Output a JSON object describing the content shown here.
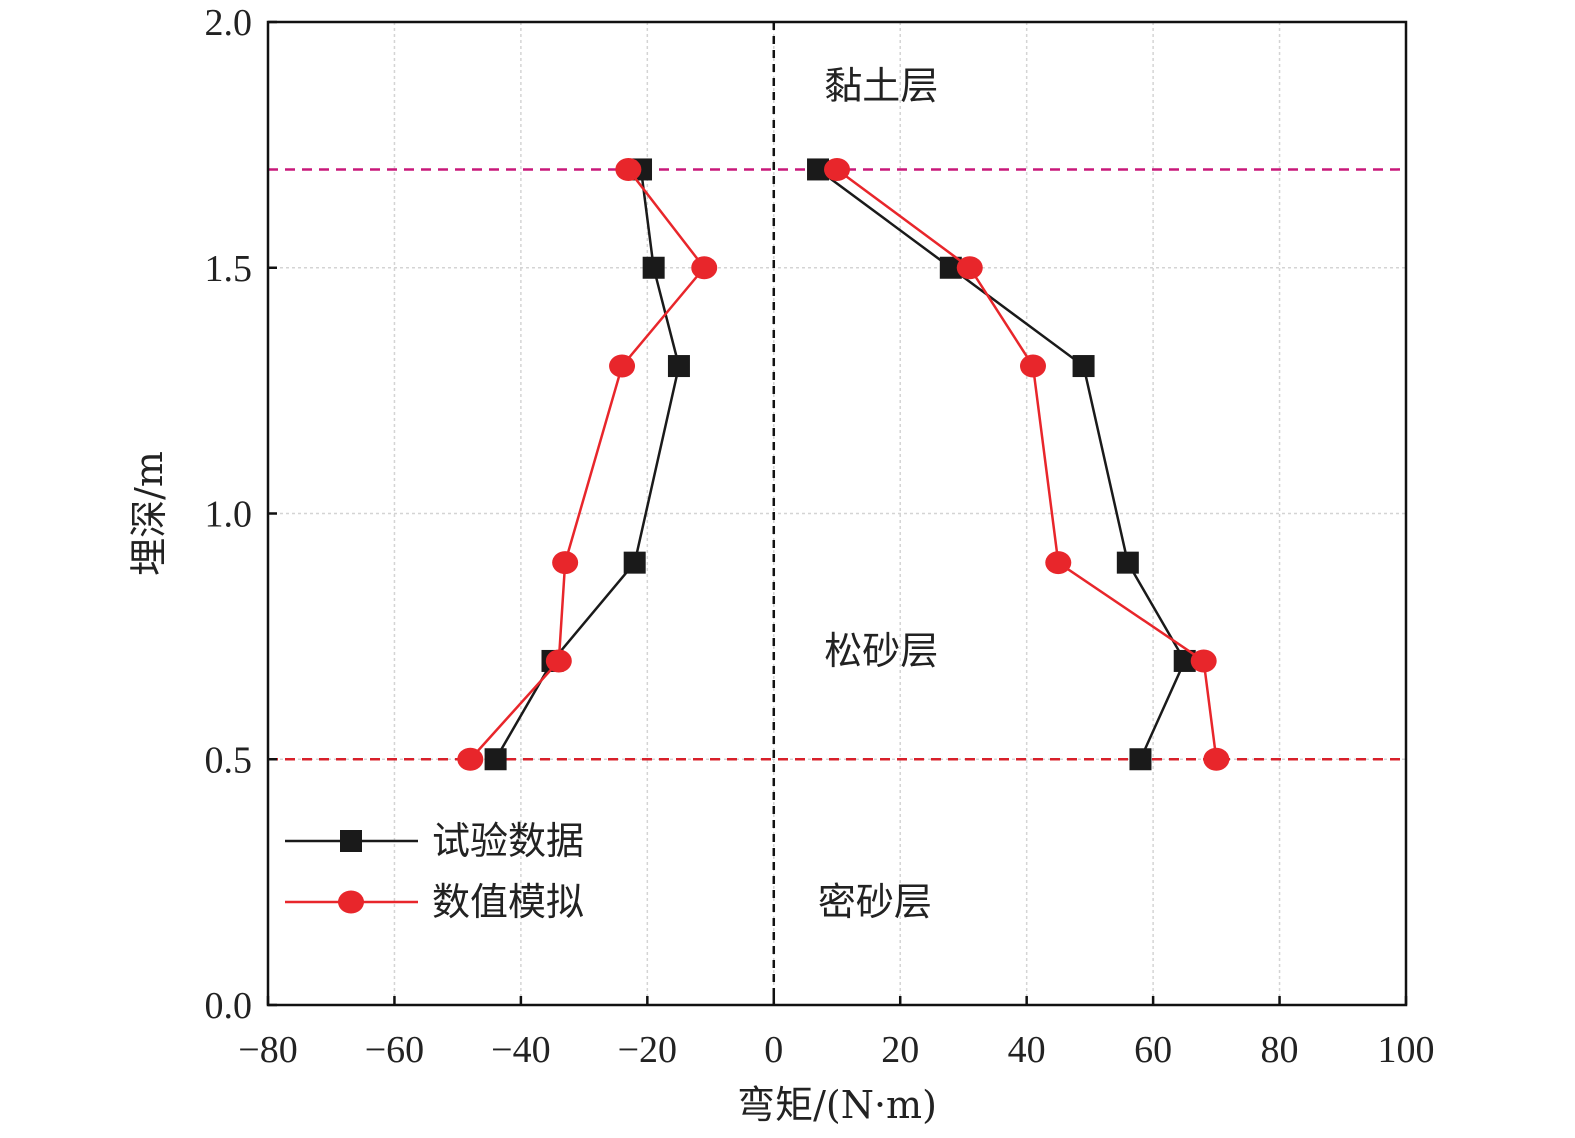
{
  "chart_data": {
    "type": "line",
    "xlabel": "弯矩/(N·m)",
    "ylabel": "埋深/m",
    "xlim": [
      -80,
      100
    ],
    "ylim": [
      0.0,
      2.0
    ],
    "xticks": [
      -80,
      -60,
      -40,
      -20,
      0,
      20,
      40,
      60,
      80,
      100
    ],
    "xtick_labels": [
      "−80",
      "−60",
      "−40",
      "−20",
      "0",
      "20",
      "40",
      "60",
      "80",
      "100"
    ],
    "yticks": [
      0.0,
      0.5,
      1.0,
      1.5,
      2.0
    ],
    "ytick_labels": [
      "0.0",
      "0.5",
      "1.0",
      "1.5",
      "2.0"
    ],
    "grid": true,
    "legend_position": "bottom-left",
    "series": [
      {
        "name": "试验数据",
        "color": "#1a1a1a",
        "marker": "square",
        "branches": [
          {
            "x": [
              -21,
              -19,
              -15,
              -22,
              -35,
              -44
            ],
            "y": [
              1.7,
              1.5,
              1.3,
              0.9,
              0.7,
              0.5
            ]
          },
          {
            "x": [
              7,
              28,
              49,
              56,
              65,
              58
            ],
            "y": [
              1.7,
              1.5,
              1.3,
              0.9,
              0.7,
              0.5
            ]
          }
        ]
      },
      {
        "name": "数值模拟",
        "color": "#e8262b",
        "marker": "circle",
        "branches": [
          {
            "x": [
              -23,
              -11,
              -24,
              -33,
              -34,
              -48
            ],
            "y": [
              1.7,
              1.5,
              1.3,
              0.9,
              0.7,
              0.5
            ]
          },
          {
            "x": [
              10,
              31,
              41,
              45,
              68,
              70
            ],
            "y": [
              1.7,
              1.5,
              1.3,
              0.9,
              0.7,
              0.5
            ]
          }
        ]
      }
    ],
    "reference_lines": [
      {
        "orientation": "horizontal",
        "value": 1.7,
        "color": "#c8187a",
        "style": "dashed"
      },
      {
        "orientation": "horizontal",
        "value": 0.5,
        "color": "#d8202a",
        "style": "dashed"
      },
      {
        "orientation": "vertical",
        "value": 0,
        "color": "#111111",
        "style": "dashed"
      }
    ],
    "annotations": [
      {
        "text": "黏土层",
        "x": 17,
        "y": 1.87
      },
      {
        "text": "松砂层",
        "x": 17,
        "y": 0.72
      },
      {
        "text": "密砂层",
        "x": 16,
        "y": 0.21
      }
    ]
  }
}
